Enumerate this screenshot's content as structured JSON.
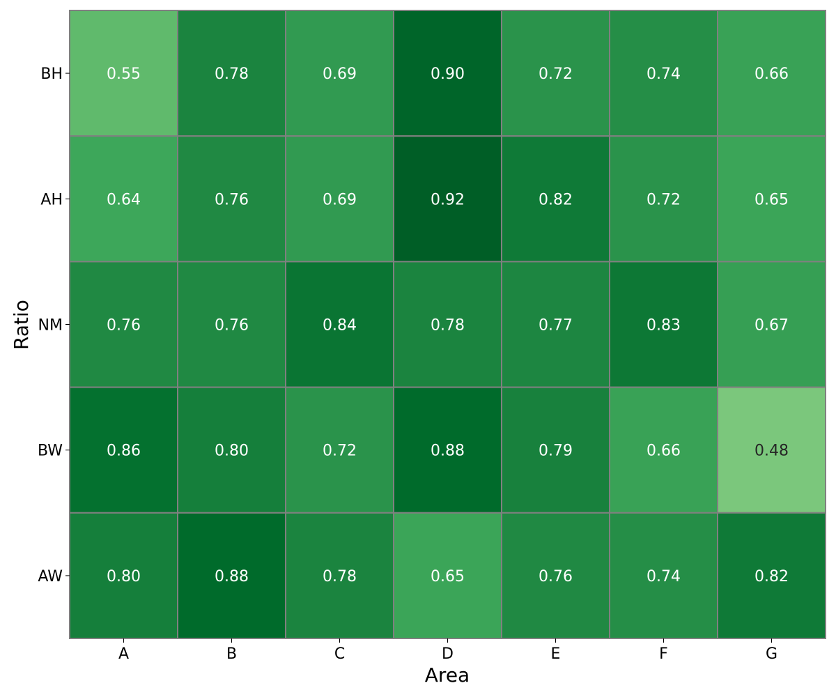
{
  "chart_data": {
    "type": "heatmap",
    "title": "",
    "xlabel": "Area",
    "ylabel": "Ratio",
    "x_categories": [
      "A",
      "B",
      "C",
      "D",
      "E",
      "F",
      "G"
    ],
    "y_categories": [
      "BH",
      "AH",
      "NM",
      "BW",
      "AW"
    ],
    "values": [
      [
        0.55,
        0.78,
        0.69,
        0.9,
        0.72,
        0.74,
        0.66
      ],
      [
        0.64,
        0.76,
        0.69,
        0.92,
        0.82,
        0.72,
        0.65
      ],
      [
        0.76,
        0.76,
        0.84,
        0.78,
        0.77,
        0.83,
        0.67
      ],
      [
        0.86,
        0.8,
        0.72,
        0.88,
        0.79,
        0.66,
        0.48
      ],
      [
        0.8,
        0.88,
        0.78,
        0.65,
        0.76,
        0.74,
        0.82
      ]
    ],
    "value_format": "2 decimals",
    "colormap": "Greens",
    "colormap_stops": [
      "#f7fcf5",
      "#e5f5e0",
      "#c7e9c0",
      "#a1d99b",
      "#74c476",
      "#41ab5d",
      "#238b45",
      "#006d2c",
      "#00441b"
    ],
    "color_range": [
      0.0,
      1.0
    ],
    "cell_border_color": "#808080",
    "label_color_dark_bg": "#ffffff",
    "label_color_light_bg": "#262626",
    "grid": false,
    "legend": "none"
  }
}
